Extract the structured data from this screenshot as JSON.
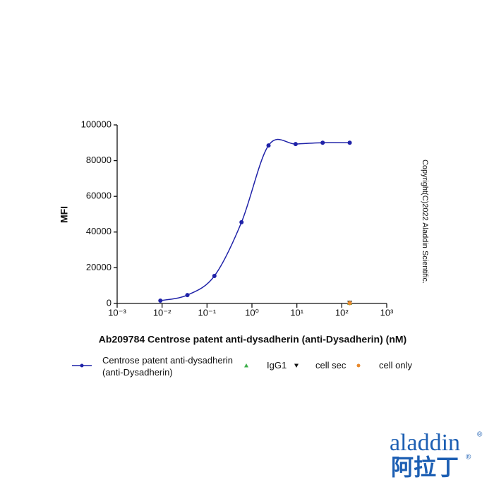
{
  "chart_data": {
    "type": "scatter",
    "x_label": "Ab209784 Centrose patent anti-dysadherin (anti-Dysadherin) (nM)",
    "y_label": "MFI",
    "xscale": "log",
    "xlim": [
      0.001,
      1000
    ],
    "xticks": [
      {
        "value": 0.001,
        "label": "10⁻³"
      },
      {
        "value": 0.01,
        "label": "10⁻²"
      },
      {
        "value": 0.1,
        "label": "10⁻¹"
      },
      {
        "value": 1,
        "label": "10⁰"
      },
      {
        "value": 10,
        "label": "10¹"
      },
      {
        "value": 100,
        "label": "10²"
      },
      {
        "value": 1000,
        "label": "10³"
      }
    ],
    "ylim": [
      0,
      100000
    ],
    "yticks": [
      0,
      20000,
      40000,
      60000,
      80000,
      100000
    ],
    "series": [
      {
        "name": "Centrose patent anti-dysadherin (anti-Dysadherin)",
        "color": "#1f22a8",
        "marker": "circle",
        "curve": true,
        "x": [
          0.00916,
          0.0366,
          0.146,
          0.586,
          2.34,
          9.375,
          37.5,
          150
        ],
        "values": [
          1600,
          4700,
          15400,
          45500,
          88500,
          89300,
          90000,
          90000
        ]
      },
      {
        "name": "IgG1",
        "color": "#3cae49",
        "marker": "triangle-up",
        "x": [
          150
        ],
        "values": [
          400
        ]
      },
      {
        "name": "cell sec",
        "color": "#111111",
        "marker": "triangle-down",
        "x": [
          150
        ],
        "values": [
          300
        ]
      },
      {
        "name": "cell only",
        "color": "#e8892c",
        "marker": "circle",
        "x": [
          150
        ],
        "values": [
          200
        ]
      }
    ]
  },
  "copyright": "Copyright(C)2022 Aladdin Scientific.",
  "logo": {
    "text": "aladdin",
    "cn": "阿拉丁",
    "reg": "®"
  }
}
